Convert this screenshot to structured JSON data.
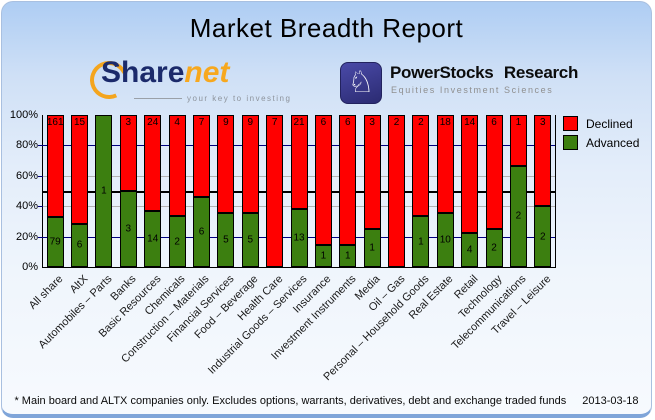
{
  "title": "Market Breadth Report",
  "logos": {
    "sharenet": {
      "name_part1": "Share",
      "name_part2": "net",
      "tagline": "your key to investing"
    },
    "powerstocks": {
      "name": "PowerStocks Research",
      "tagline": "Equities Investment Sciences",
      "knight_icon": "♘"
    }
  },
  "chart_data": {
    "type": "bar",
    "stacked": true,
    "stack_mode": "100%",
    "title": "",
    "xlabel": "",
    "ylabel": "",
    "ylim": [
      0,
      100
    ],
    "y_ticks": [
      "100%",
      "80%",
      "60%",
      "40%",
      "20%",
      "0%"
    ],
    "reference_line_percent": 50,
    "grid": true,
    "legend_position": "top-right",
    "legend": [
      {
        "label": "Declined",
        "color": "#ff0000"
      },
      {
        "label": "Advanced",
        "color": "#3c7f10"
      }
    ],
    "categories": [
      "All share",
      "AltX",
      "Automobiles – Parts",
      "Banks",
      "Basic Resources",
      "Chemicals",
      "Construction – Materials",
      "Financial Services",
      "Food – Beverage",
      "Health Care",
      "Industrial Goods – Services",
      "Insurance",
      "Investment Instruments",
      "Media",
      "Oil – Gas",
      "Personal – Household Goods",
      "Real Estate",
      "Retail",
      "Technology",
      "Telecommunications",
      "Travel – Leisure"
    ],
    "series": [
      {
        "name": "Declined",
        "color": "#ff0000",
        "values": [
          161,
          15,
          0,
          3,
          24,
          4,
          7,
          9,
          9,
          7,
          21,
          6,
          6,
          3,
          2,
          2,
          18,
          14,
          6,
          1,
          3
        ]
      },
      {
        "name": "Advanced",
        "color": "#3c7f10",
        "values": [
          79,
          6,
          1,
          3,
          14,
          2,
          6,
          5,
          5,
          0,
          13,
          1,
          1,
          1,
          0,
          1,
          10,
          4,
          2,
          2,
          2
        ]
      }
    ]
  },
  "footer": {
    "note": "* Main board and ALTX companies only. Excludes options, warrants, derivatives, debt and exchange traded funds",
    "date": "2013-03-18"
  }
}
